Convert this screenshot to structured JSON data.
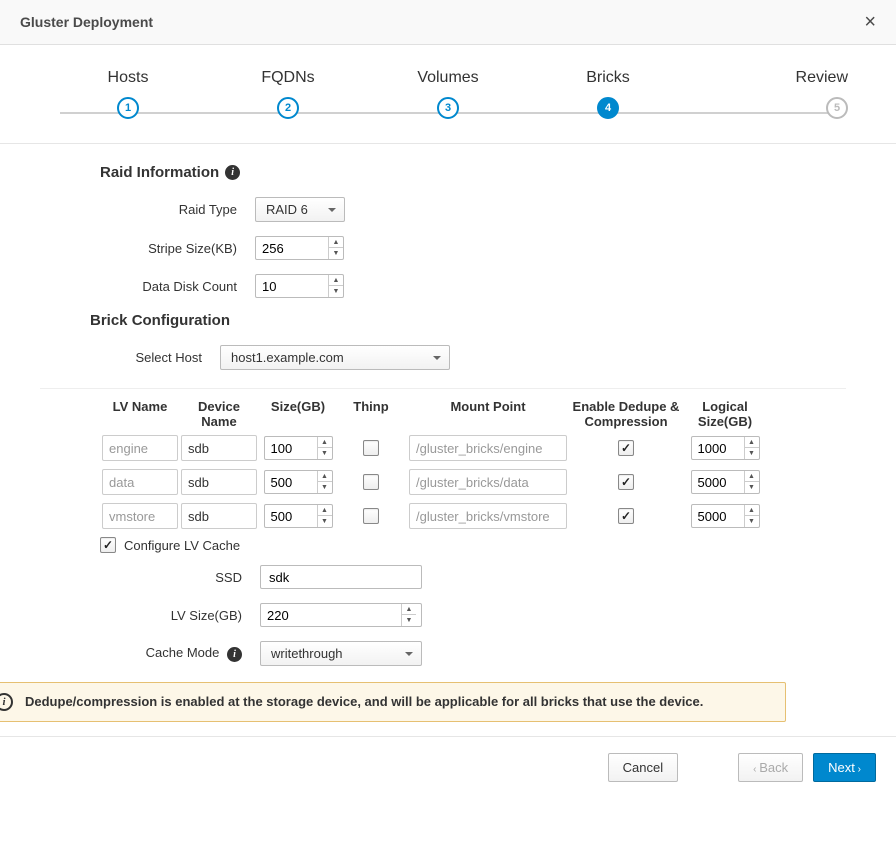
{
  "header": {
    "title": "Gluster Deployment"
  },
  "wizard": {
    "steps": [
      {
        "label": "Hosts",
        "num": "1",
        "state": "done"
      },
      {
        "label": "FQDNs",
        "num": "2",
        "state": "done"
      },
      {
        "label": "Volumes",
        "num": "3",
        "state": "done"
      },
      {
        "label": "Bricks",
        "num": "4",
        "state": "active"
      },
      {
        "label": "Review",
        "num": "5",
        "state": "pending"
      }
    ]
  },
  "raid": {
    "heading": "Raid Information",
    "type_label": "Raid Type",
    "type_value": "RAID 6",
    "stripe_label": "Stripe Size(KB)",
    "stripe_value": "256",
    "disk_label": "Data Disk Count",
    "disk_value": "10"
  },
  "bricks": {
    "heading": "Brick Configuration",
    "host_label": "Select Host",
    "host_value": "host1.example.com",
    "columns": {
      "lv": "LV Name",
      "dev": "Device Name",
      "size": "Size(GB)",
      "thinp": "Thinp",
      "mp": "Mount Point",
      "dedupe": "Enable Dedupe & Compression",
      "logical": "Logical Size(GB)"
    },
    "rows": [
      {
        "lv": "engine",
        "dev": "sdb",
        "size": "100",
        "thinp": false,
        "mp": "/gluster_bricks/engine",
        "dedupe": true,
        "logical": "1000"
      },
      {
        "lv": "data",
        "dev": "sdb",
        "size": "500",
        "thinp": false,
        "mp": "/gluster_bricks/data",
        "dedupe": true,
        "logical": "5000"
      },
      {
        "lv": "vmstore",
        "dev": "sdb",
        "size": "500",
        "thinp": false,
        "mp": "/gluster_bricks/vmstore",
        "dedupe": true,
        "logical": "5000"
      }
    ],
    "cache": {
      "enable_label": "Configure LV Cache",
      "enabled": true,
      "ssd_label": "SSD",
      "ssd_value": "sdk",
      "size_label": "LV Size(GB)",
      "size_value": "220",
      "mode_label": "Cache Mode",
      "mode_value": "writethrough"
    }
  },
  "alert": {
    "text": "Dedupe/compression is enabled at the storage device, and will be applicable for all bricks that use the device."
  },
  "footer": {
    "cancel": "Cancel",
    "back": "Back",
    "next": "Next"
  },
  "colors": {
    "accent": "#0088ce",
    "border": "#bbbbbb",
    "alert_bg": "#fdf7e8",
    "alert_border": "#e6c072"
  }
}
